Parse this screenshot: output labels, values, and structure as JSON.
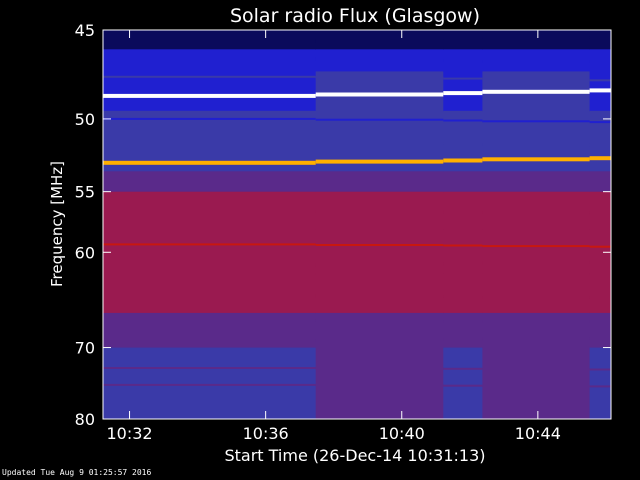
{
  "chart_data": {
    "type": "heatmap",
    "title": "Solar radio Flux (Glasgow)",
    "xlabel": "Start Time (26-Dec-14 10:31:13)",
    "ylabel": "Frequency [MHz]",
    "x_ticks": [
      "10:32",
      "10:36",
      "10:40",
      "10:44"
    ],
    "x_tick_minutes": [
      0.78,
      4.78,
      8.78,
      12.78
    ],
    "x_range_minutes": [
      0,
      14.93
    ],
    "y_ticks": [
      45,
      50,
      55,
      60,
      70,
      80
    ],
    "ylim": [
      45,
      80
    ],
    "y_scale": "reciprocal",
    "colormap": [
      "#000000",
      "#0a0a5c",
      "#2020d0",
      "#3a3aa8",
      "#5a2a8a",
      "#9a1a50",
      "#c81810",
      "#ff4000",
      "#ffb000",
      "#ffffff"
    ],
    "segment_start_minutes": [
      0,
      6.25,
      10.0,
      11.15,
      14.3
    ],
    "bands": [
      {
        "mhz": 45.6,
        "intensity": 0.12
      },
      {
        "mhz": 46.5,
        "intensity": 0.2
      },
      {
        "mhz": 47.5,
        "intensity": 0.3
      },
      {
        "mhz": 48.6,
        "intensity": 0.98
      },
      {
        "mhz": 50.0,
        "intensity": 0.22
      },
      {
        "mhz": 51.5,
        "intensity": 0.3
      },
      {
        "mhz": 52.9,
        "intensity": 0.85
      },
      {
        "mhz": 56.5,
        "intensity": 0.6
      },
      {
        "mhz": 59.3,
        "intensity": 0.62
      },
      {
        "mhz": 61.2,
        "intensity": 0.5
      },
      {
        "mhz": 64.2,
        "intensity": 0.55
      },
      {
        "mhz": 66.8,
        "intensity": 0.45
      },
      {
        "mhz": 69.2,
        "intensity": 0.4
      },
      {
        "mhz": 72.6,
        "intensity": 0.45
      },
      {
        "mhz": 74.9,
        "intensity": 0.42
      }
    ]
  },
  "footer": {
    "updated": "Updated Tue Aug  9 01:25:57 2016"
  }
}
